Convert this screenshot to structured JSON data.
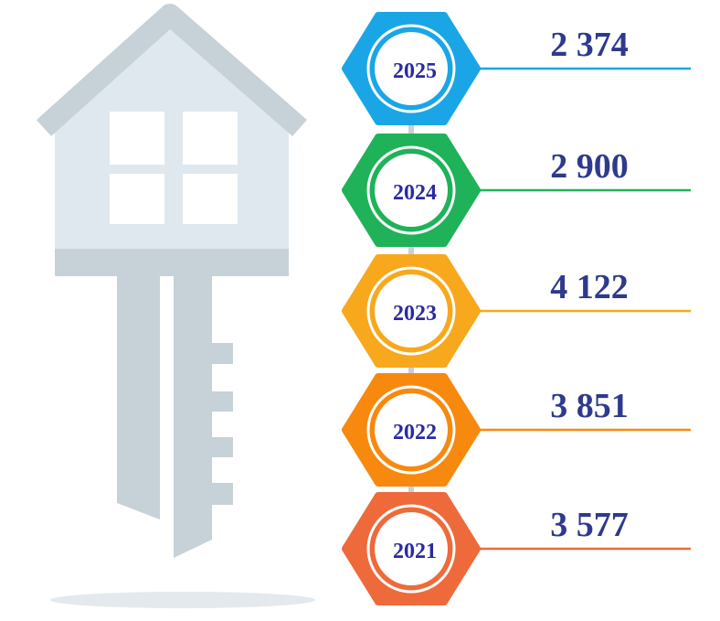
{
  "items": [
    {
      "year": "2025",
      "value": "2 374",
      "color": "#1aa6e6"
    },
    {
      "year": "2024",
      "value": "2 900",
      "color": "#1fb259"
    },
    {
      "year": "2023",
      "value": "4 122",
      "color": "#f8a81d"
    },
    {
      "year": "2022",
      "value": "3 851",
      "color": "#f7890f"
    },
    {
      "year": "2021",
      "value": "3 577",
      "color": "#ee6a3a"
    }
  ]
}
